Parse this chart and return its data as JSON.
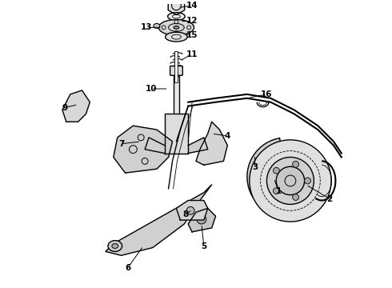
{
  "background_color": "#ffffff",
  "line_color": "#000000",
  "label_color": "#000000",
  "fig_width": 4.9,
  "fig_height": 3.6,
  "dpi": 100,
  "labels": [
    {
      "num": "1",
      "lpos": [
        3.5,
        1.22
      ],
      "ltgt": [
        3.44,
        1.38
      ]
    },
    {
      "num": "2",
      "lpos": [
        4.15,
        1.12
      ],
      "ltgt": [
        3.85,
        1.3
      ]
    },
    {
      "num": "3",
      "lpos": [
        3.2,
        1.52
      ],
      "ltgt": [
        3.2,
        1.68
      ]
    },
    {
      "num": "4",
      "lpos": [
        2.85,
        1.92
      ],
      "ltgt": [
        2.65,
        1.95
      ]
    },
    {
      "num": "5",
      "lpos": [
        2.55,
        0.52
      ],
      "ltgt": [
        2.52,
        0.8
      ]
    },
    {
      "num": "6",
      "lpos": [
        1.58,
        0.24
      ],
      "ltgt": [
        1.78,
        0.52
      ]
    },
    {
      "num": "7",
      "lpos": [
        1.5,
        1.82
      ],
      "ltgt": [
        1.75,
        1.85
      ]
    },
    {
      "num": "8",
      "lpos": [
        2.32,
        0.92
      ],
      "ltgt": [
        2.4,
        0.98
      ]
    },
    {
      "num": "9",
      "lpos": [
        0.78,
        2.28
      ],
      "ltgt": [
        0.95,
        2.32
      ]
    },
    {
      "num": "10",
      "lpos": [
        1.88,
        2.52
      ],
      "ltgt": [
        2.1,
        2.52
      ]
    },
    {
      "num": "11",
      "lpos": [
        2.4,
        2.96
      ],
      "ltgt": [
        2.25,
        2.88
      ]
    },
    {
      "num": "12",
      "lpos": [
        2.4,
        3.38
      ],
      "ltgt": [
        2.25,
        3.38
      ]
    },
    {
      "num": "13",
      "lpos": [
        1.82,
        3.3
      ],
      "ltgt": [
        2.02,
        3.3
      ]
    },
    {
      "num": "14",
      "lpos": [
        2.4,
        3.58
      ],
      "ltgt": [
        2.22,
        3.55
      ]
    },
    {
      "num": "15",
      "lpos": [
        2.4,
        3.2
      ],
      "ltgt": [
        2.3,
        3.22
      ]
    },
    {
      "num": "16",
      "lpos": [
        3.35,
        2.45
      ],
      "ltgt": [
        3.1,
        2.4
      ]
    }
  ]
}
